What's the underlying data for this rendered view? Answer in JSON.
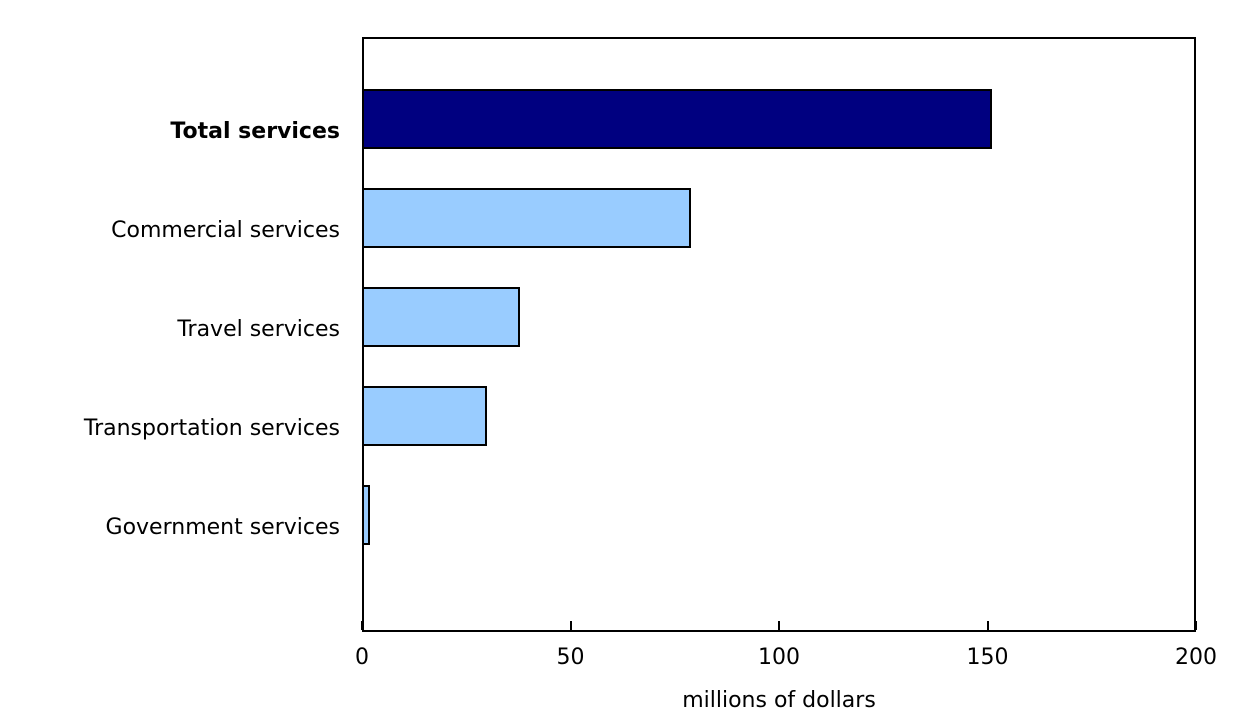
{
  "chart_data": {
    "type": "bar",
    "orientation": "horizontal",
    "title": "",
    "categories": [
      "Total services",
      "Commercial services",
      "Travel services",
      "Transportation services",
      "Government services"
    ],
    "values": [
      151,
      79,
      38,
      30,
      2
    ],
    "bar_colors": [
      "#000080",
      "#99ccff",
      "#99ccff",
      "#99ccff",
      "#99ccff"
    ],
    "bold_categories": [
      "Total services"
    ],
    "xlabel": "millions of dollars",
    "ylabel": "",
    "xlim": [
      0,
      200
    ],
    "xticks": [
      "0",
      "50",
      "100",
      "150",
      "200"
    ],
    "xtick_values": [
      0,
      50,
      100,
      150,
      200
    ],
    "grid": false,
    "legend": null,
    "bar_border_color": "#000000",
    "axis_color": "#000000",
    "background_color": "#ffffff",
    "text_color": "#000000"
  }
}
